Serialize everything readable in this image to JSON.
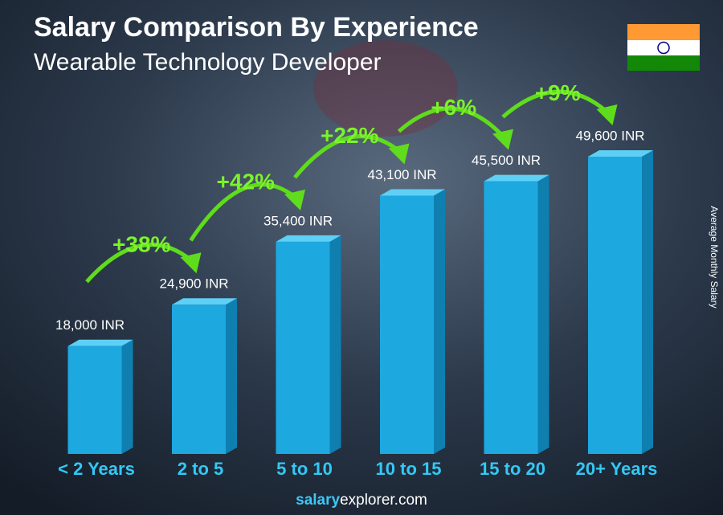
{
  "chart_data": {
    "type": "bar3d",
    "title": "Salary Comparison By Experience",
    "subtitle": "Wearable Technology Developer",
    "y_label": "Average Monthly Salary",
    "categories": [
      "< 2 Years",
      "2 to 5",
      "5 to 10",
      "10 to 15",
      "15 to 20",
      "20+ Years"
    ],
    "values": [
      18000,
      24900,
      35400,
      43100,
      45500,
      49600
    ],
    "value_labels": [
      "18,000 INR",
      "24,900 INR",
      "35,400 INR",
      "43,100 INR",
      "45,500 INR",
      "49,600 INR"
    ],
    "color": "#1ea8e0",
    "changes": [
      "+38%",
      "+42%",
      "+22%",
      "+6%",
      "+9%"
    ],
    "footer": {
      "brand": "salary",
      "domain": "explorer.com"
    }
  }
}
